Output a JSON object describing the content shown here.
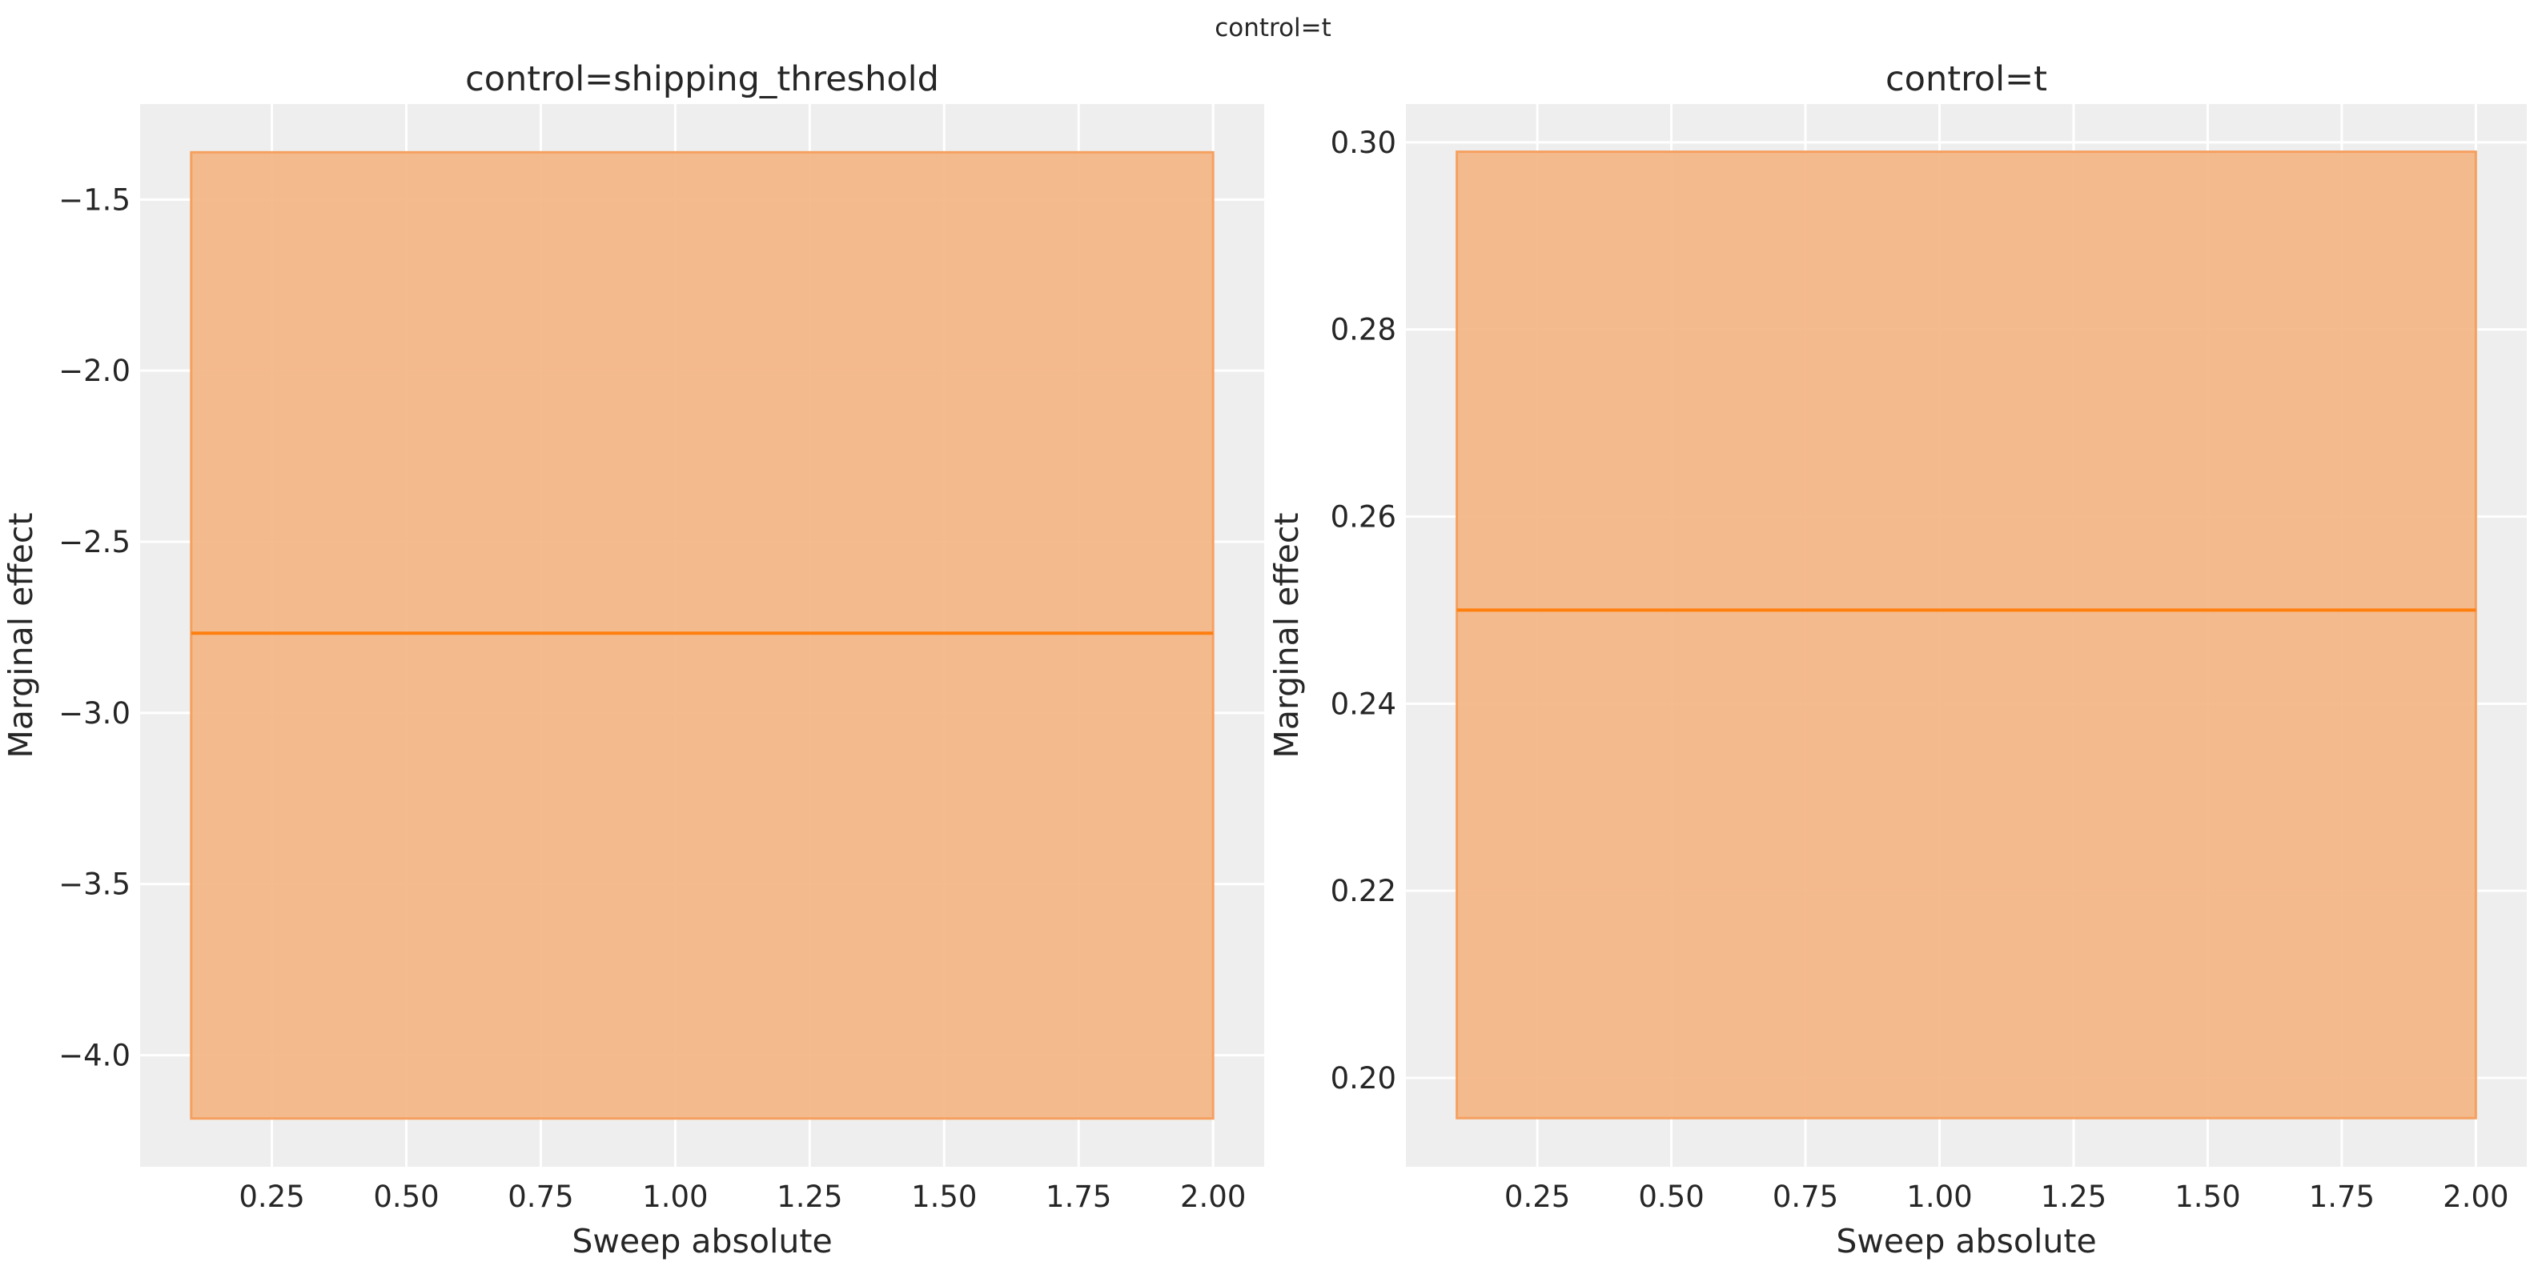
{
  "suptitle": "control=t",
  "colors": {
    "axes_bg": "#eeeeee",
    "grid": "#ffffff",
    "band_fill": "#f3b482",
    "band_edge": "#f5a060",
    "line": "#ff7f0e",
    "text": "#262626"
  },
  "chart_data": [
    {
      "type": "area",
      "title": "control=shipping_threshold",
      "xlabel": "Sweep absolute",
      "ylabel": "Marginal effect",
      "xlim": [
        0.005,
        2.095
      ],
      "ylim": [
        -4.326,
        -1.221
      ],
      "xticks": [
        0.25,
        0.5,
        0.75,
        1.0,
        1.25,
        1.5,
        1.75,
        2.0
      ],
      "xtick_labels": [
        "0.25",
        "0.50",
        "0.75",
        "1.00",
        "1.25",
        "1.50",
        "1.75",
        "2.00"
      ],
      "yticks": [
        -4.0,
        -3.5,
        -3.0,
        -2.5,
        -2.0,
        -1.5
      ],
      "ytick_labels": [
        "−4.0",
        "−3.5",
        "−3.0",
        "−2.5",
        "−2.0",
        "−1.5"
      ],
      "grid": true,
      "band": {
        "x": [
          0.1,
          2.0
        ],
        "lower": -4.185,
        "upper": -1.362
      },
      "line": {
        "x": [
          0.1,
          2.0
        ],
        "y": [
          -2.767,
          -2.767
        ]
      }
    },
    {
      "type": "area",
      "title": "control=t",
      "xlabel": "Sweep absolute",
      "ylabel": "Marginal effect",
      "xlim": [
        0.005,
        2.095
      ],
      "ylim": [
        0.1905,
        0.3041
      ],
      "xticks": [
        0.25,
        0.5,
        0.75,
        1.0,
        1.25,
        1.5,
        1.75,
        2.0
      ],
      "xtick_labels": [
        "0.25",
        "0.50",
        "0.75",
        "1.00",
        "1.25",
        "1.50",
        "1.75",
        "2.00"
      ],
      "yticks": [
        0.2,
        0.22,
        0.24,
        0.26,
        0.28,
        0.3
      ],
      "ytick_labels": [
        "0.20",
        "0.22",
        "0.24",
        "0.26",
        "0.28",
        "0.30"
      ],
      "grid": true,
      "band": {
        "x": [
          0.1,
          2.0
        ],
        "lower": 0.1957,
        "upper": 0.299
      },
      "line": {
        "x": [
          0.1,
          2.0
        ],
        "y": [
          0.25,
          0.25
        ]
      }
    }
  ]
}
